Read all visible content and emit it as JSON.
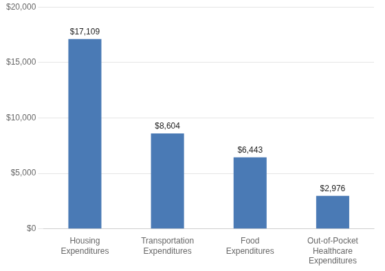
{
  "chart_data": {
    "type": "bar",
    "categories": [
      "Housing\nExpenditures",
      "Transportation\nExpenditures",
      "Food\nExpenditures",
      "Out-of-Pocket\nHealthcare\nExpenditures"
    ],
    "values": [
      17109,
      8604,
      6443,
      2976
    ],
    "value_labels": [
      "$17,109",
      "$8,604",
      "$6,443",
      "$2,976"
    ],
    "data_labels": true,
    "color": "#4a7ab5",
    "ylim": [
      0,
      20000
    ],
    "yticks": [
      {
        "value": 0,
        "label": "$0"
      },
      {
        "value": 5000,
        "label": "$5,000"
      },
      {
        "value": 10000,
        "label": "$10,000"
      },
      {
        "value": 15000,
        "label": "$15,000"
      },
      {
        "value": 20000,
        "label": "$20,000"
      }
    ],
    "grid": true
  }
}
